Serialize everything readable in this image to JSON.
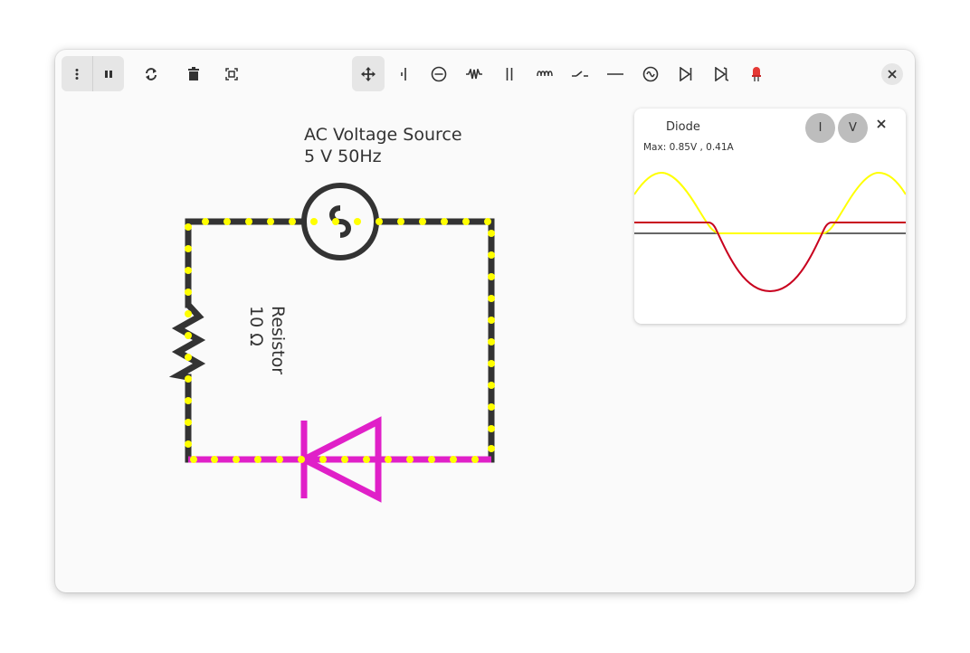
{
  "window_controls": {
    "menu_icon": "vertical-dots-icon",
    "pause_icon": "pause-icon",
    "refresh_icon": "refresh-icon",
    "delete_icon": "trash-icon",
    "fit_icon": "fit-screen-icon",
    "close_icon": "close-icon"
  },
  "toolbar": {
    "tools": [
      {
        "name": "move",
        "icon": "move-icon",
        "active": true
      },
      {
        "name": "dc-source",
        "icon": "battery-icon"
      },
      {
        "name": "current-source",
        "icon": "current-source-icon"
      },
      {
        "name": "resistor",
        "icon": "resistor-icon"
      },
      {
        "name": "capacitor",
        "icon": "capacitor-icon"
      },
      {
        "name": "inductor",
        "icon": "inductor-icon"
      },
      {
        "name": "switch",
        "icon": "switch-icon"
      },
      {
        "name": "wire",
        "icon": "wire-icon"
      },
      {
        "name": "ac-source",
        "icon": "ac-source-icon"
      },
      {
        "name": "diode",
        "icon": "diode-icon"
      },
      {
        "name": "zener-diode",
        "icon": "zener-icon"
      },
      {
        "name": "led",
        "icon": "led-icon"
      }
    ]
  },
  "circuit": {
    "ac_source": {
      "name": "AC Voltage Source",
      "value": "5 V 50Hz"
    },
    "resistor": {
      "name": "Resistor",
      "value": "10 Ω"
    },
    "diode_color": "#e020c8",
    "wire_color": "#333333",
    "current_dot_color": "#ffff00"
  },
  "scope": {
    "title": "Diode",
    "max_text": "Max: 0.85V , 0.41A",
    "current_button": "I",
    "voltage_button": "V",
    "close_icon": "close-icon",
    "colors": {
      "current": "#ffff00",
      "voltage": "#c8001e",
      "axis": "#333333"
    }
  }
}
